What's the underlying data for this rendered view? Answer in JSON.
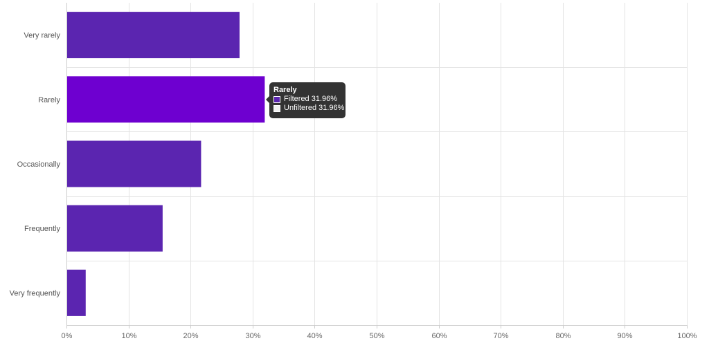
{
  "chart_data": {
    "type": "bar",
    "orientation": "horizontal",
    "categories": [
      "Very rarely",
      "Rarely",
      "Occasionally",
      "Frequently",
      "Very frequently"
    ],
    "series": [
      {
        "name": "Filtered",
        "values": [
          27.9,
          31.96,
          21.7,
          15.5,
          3.1
        ]
      }
    ],
    "xlim": [
      0,
      100
    ],
    "xticks": [
      "0%",
      "10%",
      "20%",
      "30%",
      "40%",
      "50%",
      "60%",
      "70%",
      "80%",
      "90%",
      "100%"
    ],
    "grid": true,
    "title": "",
    "xlabel": "",
    "ylabel": "",
    "highlighted_category": "Rarely"
  },
  "colors": {
    "bar": "#5b25b0",
    "bar_highlight": "#6e00d0",
    "grid": "#e3e3e3",
    "axis": "#cccccc",
    "tooltip_bg": "#333333",
    "swatch_filtered": "#5b25b0",
    "swatch_unfiltered": "#f2f2f2"
  },
  "tooltip": {
    "title": "Rarely",
    "filtered_text": "Filtered 31.96%",
    "unfiltered_text": "Unfiltered 31.96%"
  }
}
